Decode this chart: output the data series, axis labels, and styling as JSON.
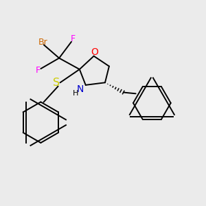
{
  "bg_color": "#ebebeb",
  "bond_color": "#000000",
  "line_width": 1.4,
  "atom_colors": {
    "O": "#ff0000",
    "N": "#0000cc",
    "S": "#cccc00",
    "Br": "#cc6600",
    "F": "#ff00ff",
    "C": "#000000",
    "H": "#000000"
  },
  "font_size": 9.5
}
